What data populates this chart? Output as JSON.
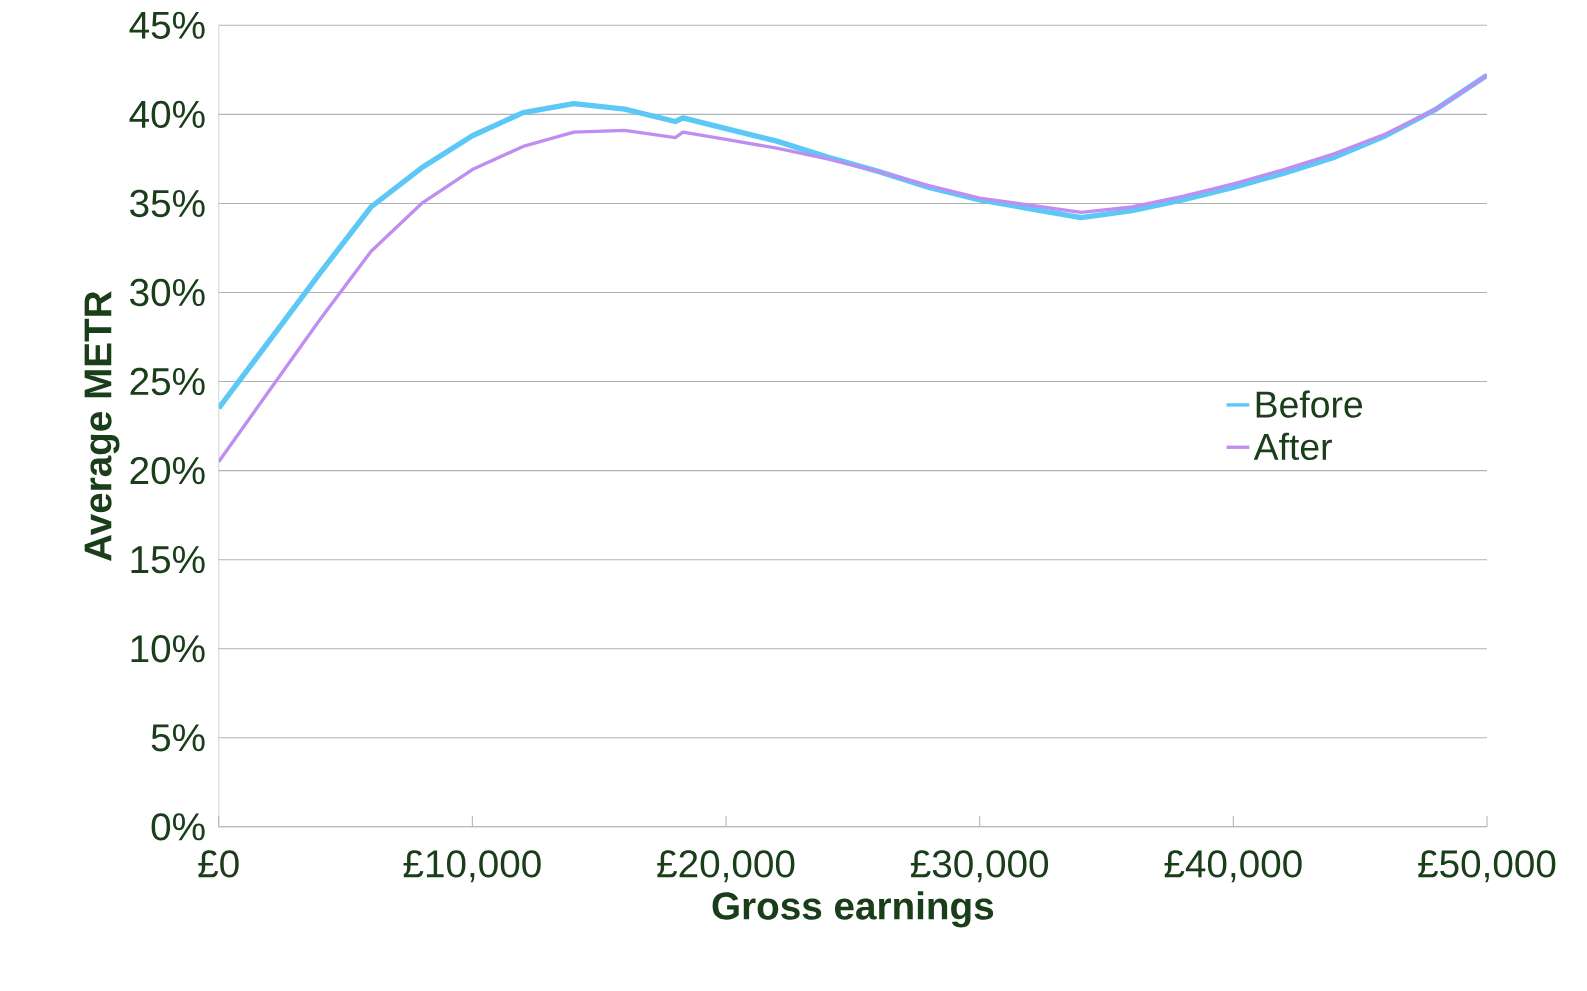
{
  "chart_data": {
    "type": "line",
    "xlabel": "Gross earnings",
    "ylabel": "Average METR",
    "x": [
      0,
      2000,
      4000,
      6000,
      8000,
      10000,
      12000,
      14000,
      16000,
      18000,
      18300,
      20000,
      22000,
      24000,
      26000,
      28000,
      30000,
      32000,
      34000,
      36000,
      38000,
      40000,
      42000,
      44000,
      46000,
      48000,
      50000
    ],
    "series": [
      {
        "name": "Before",
        "color": "#5bc8f5",
        "values": [
          23.5,
          27.3,
          31.1,
          34.8,
          37.0,
          38.8,
          40.1,
          40.6,
          40.3,
          39.6,
          39.8,
          39.2,
          38.5,
          37.6,
          36.8,
          35.9,
          35.2,
          34.7,
          34.2,
          34.6,
          35.2,
          35.9,
          36.7,
          37.6,
          38.8,
          40.3,
          42.2
        ]
      },
      {
        "name": "After",
        "color": "#c08ef0",
        "values": [
          20.5,
          24.5,
          28.5,
          32.3,
          35.0,
          36.9,
          38.2,
          39.0,
          39.1,
          38.7,
          39.0,
          38.6,
          38.1,
          37.5,
          36.8,
          36.0,
          35.3,
          34.9,
          34.5,
          34.8,
          35.4,
          36.1,
          36.9,
          37.8,
          38.9,
          40.3,
          42.2
        ]
      }
    ],
    "xlim": [
      0,
      50000
    ],
    "ylim": [
      0,
      45
    ],
    "xticks": [
      {
        "value": 0,
        "label": "£0"
      },
      {
        "value": 10000,
        "label": "£10,000"
      },
      {
        "value": 20000,
        "label": "£20,000"
      },
      {
        "value": 30000,
        "label": "£30,000"
      },
      {
        "value": 40000,
        "label": "£40,000"
      },
      {
        "value": 50000,
        "label": "£50,000"
      }
    ],
    "yticks": [
      {
        "value": 0,
        "label": "0%"
      },
      {
        "value": 5,
        "label": "5%"
      },
      {
        "value": 10,
        "label": "10%"
      },
      {
        "value": 15,
        "label": "15%"
      },
      {
        "value": 20,
        "label": "20%"
      },
      {
        "value": 25,
        "label": "25%"
      },
      {
        "value": 30,
        "label": "30%"
      },
      {
        "value": 35,
        "label": "35%"
      },
      {
        "value": 40,
        "label": "40%"
      },
      {
        "value": 45,
        "label": "45%"
      }
    ],
    "grid": "y",
    "legend": "right",
    "marker": "none",
    "line_style": "solid"
  }
}
